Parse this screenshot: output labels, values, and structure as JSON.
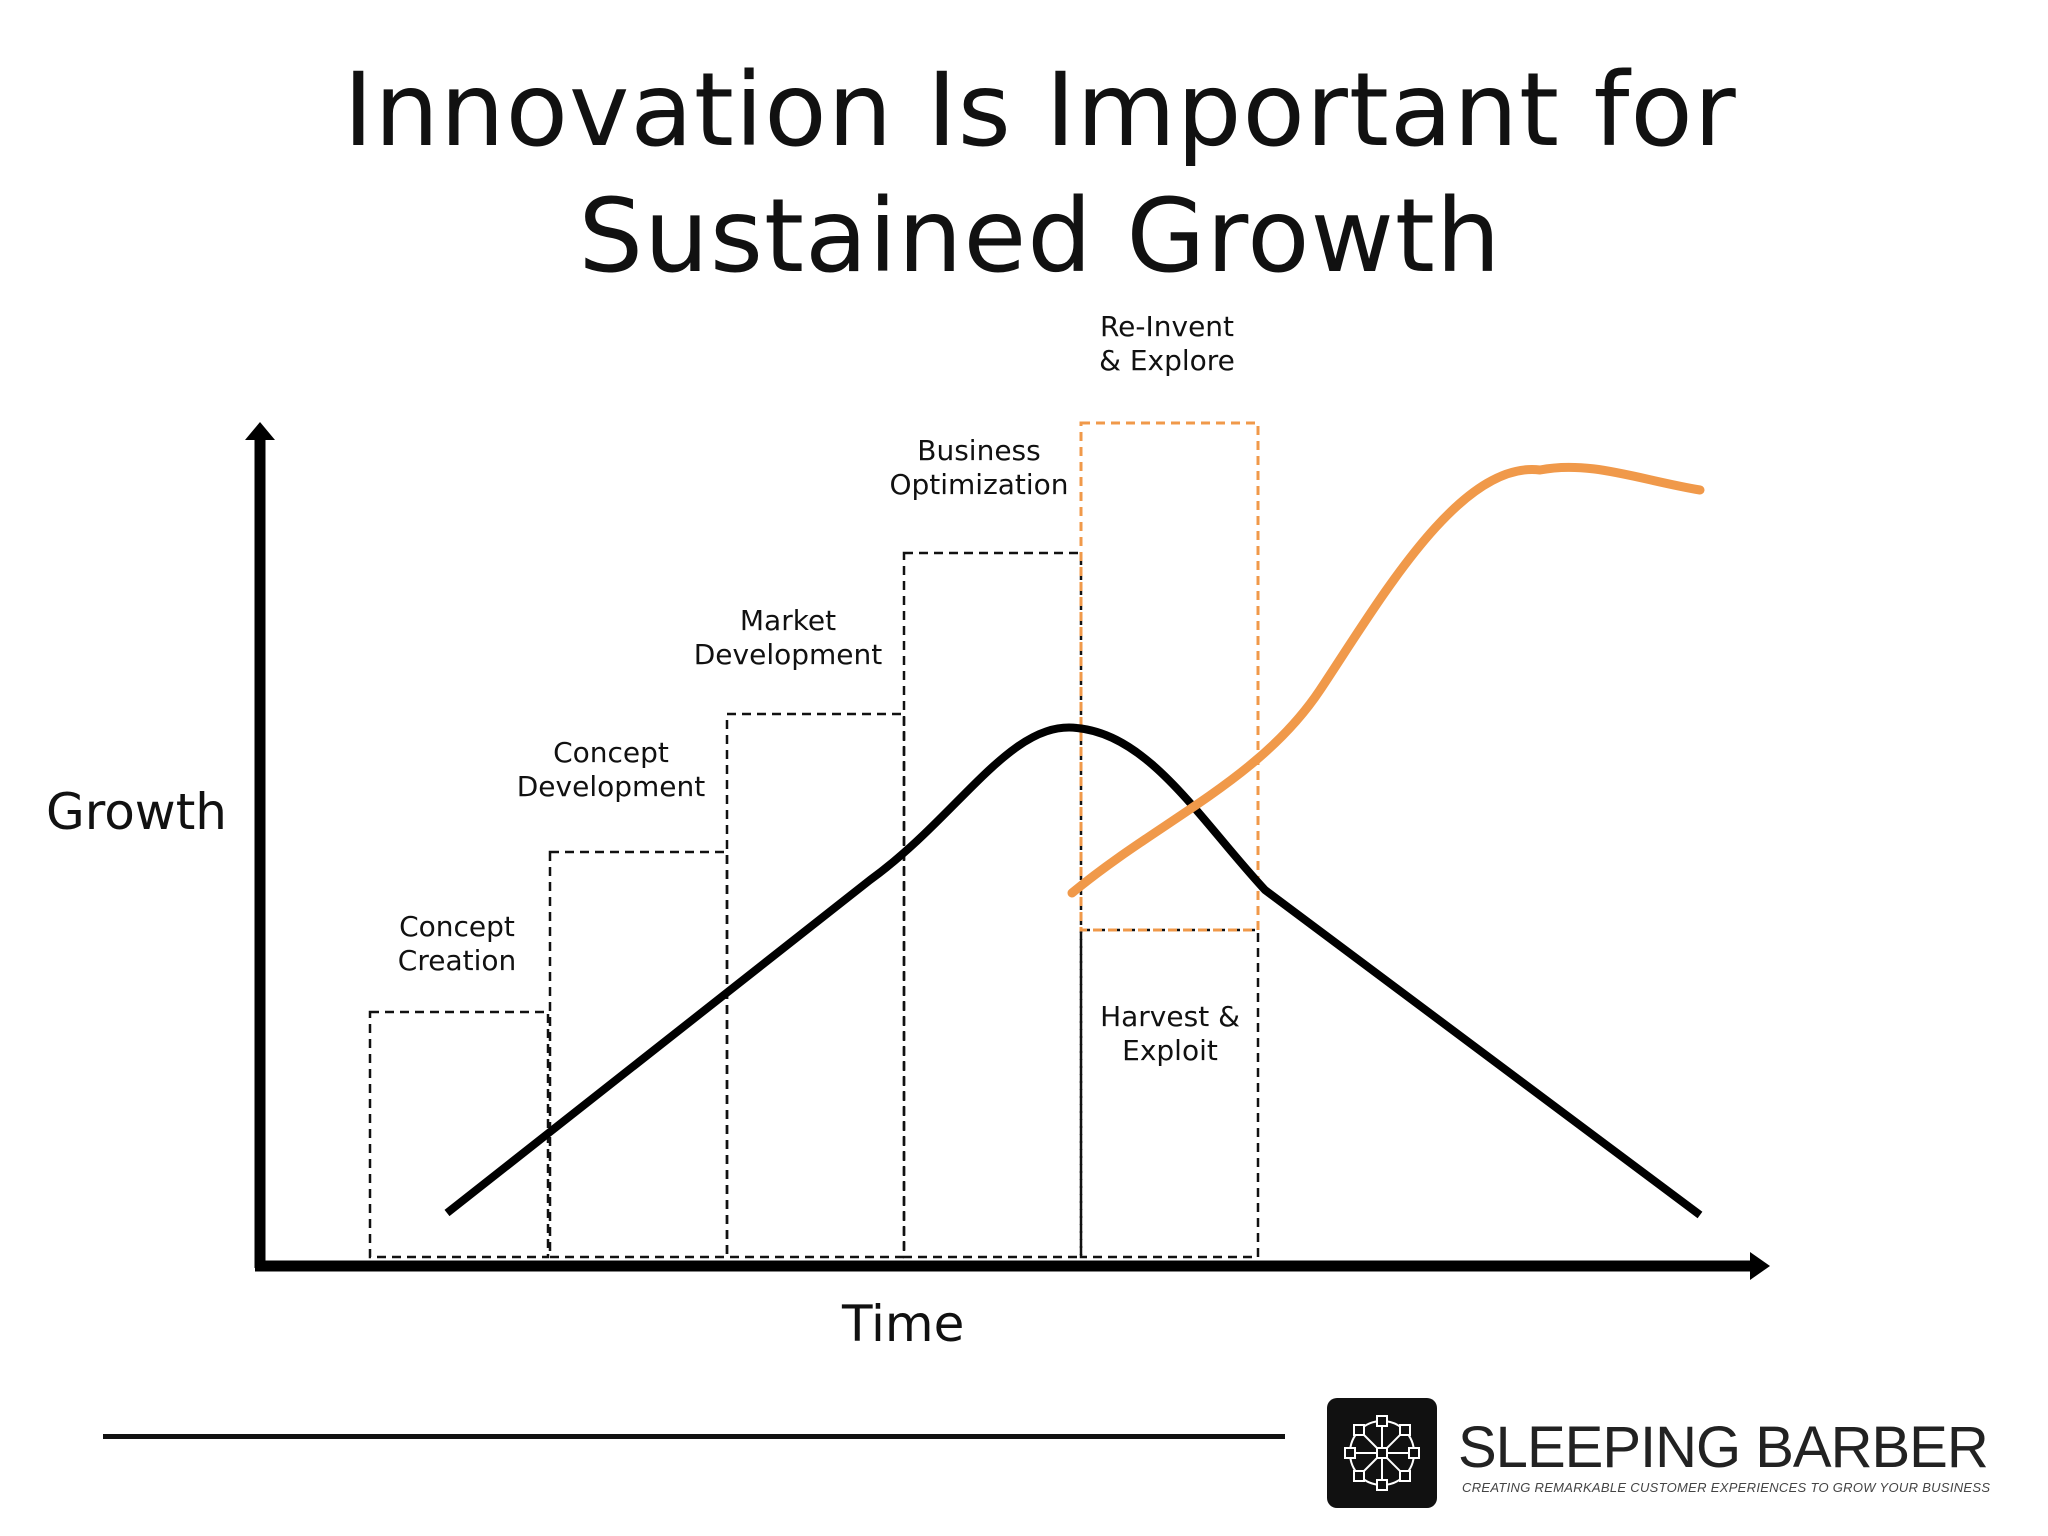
{
  "title": {
    "line1": "Innovation Is Important for",
    "line2": "Sustained Growth"
  },
  "axes": {
    "y_label": "Growth",
    "x_label": "Time"
  },
  "stages": [
    {
      "line1": "Concept",
      "line2": "Creation"
    },
    {
      "line1": "Concept",
      "line2": "Development"
    },
    {
      "line1": "Market",
      "line2": "Development"
    },
    {
      "line1": "Business",
      "line2": "Optimization"
    },
    {
      "line1": "Re-Invent",
      "line2": "& Explore"
    },
    {
      "line1": "Harvest &",
      "line2": "Exploit"
    }
  ],
  "curves": {
    "main_color": "#000000",
    "innovation_color": "#F0994A",
    "reinvent_box_color": "#F0994A"
  },
  "brand": {
    "name": "SLEEPING BARBER",
    "tagline": "CREATING REMARKABLE CUSTOMER EXPERIENCES TO GROW YOUR BUSINESS",
    "logo_icon": "network-wheel-icon"
  }
}
